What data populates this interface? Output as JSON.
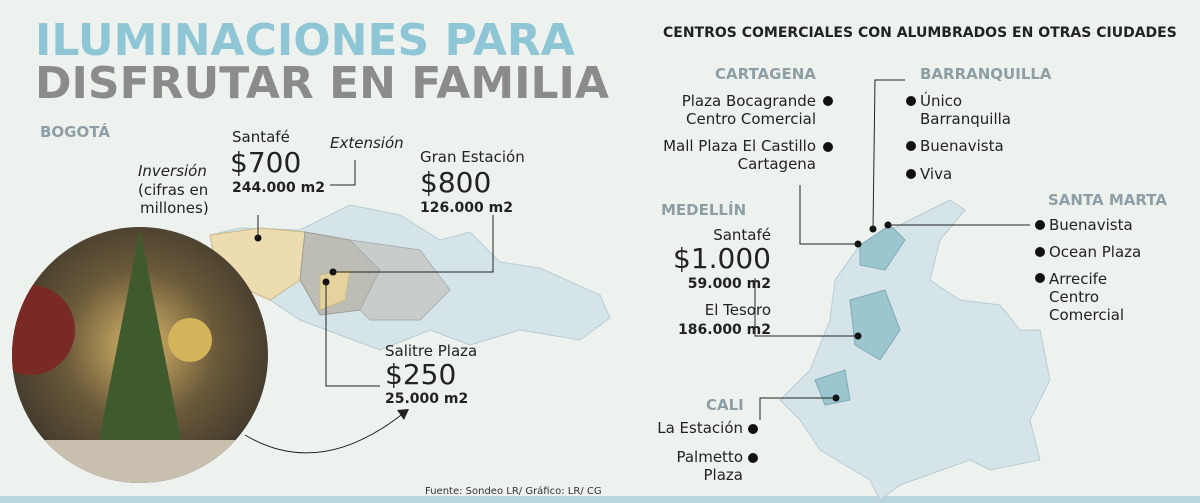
{
  "header": {
    "title_lines": [
      "ILUMINACIONES PARA",
      "DISFRUTAR EN FAMILIA"
    ]
  },
  "bogota": {
    "city": "BOGOTÁ",
    "legend": {
      "investment_lines": [
        "Inversión",
        "(cifras en",
        "millones)"
      ],
      "extension": "Extensión"
    },
    "malls": [
      {
        "name": "Santafé",
        "investment": "$700",
        "area": "244.000 m2"
      },
      {
        "name": "Gran Estación",
        "investment": "$800",
        "area": "126.000 m2"
      },
      {
        "name": "Salitre Plaza",
        "investment": "$250",
        "area": "25.000 m2"
      }
    ]
  },
  "others": {
    "title": "CENTROS COMERCIALES CON ALUMBRADOS EN OTRAS CIUDADES",
    "cartagena": {
      "city": "CARTAGENA",
      "malls": [
        [
          "Plaza Bocagrande",
          "Centro Comercial"
        ],
        [
          "Mall Plaza El Castillo",
          "Cartagena"
        ]
      ]
    },
    "barranquilla": {
      "city": "BARRANQUILLA",
      "malls": [
        [
          "Único",
          "Barranquilla"
        ],
        [
          "Buenavista"
        ],
        [
          "Viva"
        ]
      ]
    },
    "santa_marta": {
      "city": "SANTA MARTA",
      "malls": [
        [
          "Buenavista"
        ],
        [
          "Ocean Plaza"
        ],
        [
          "Arrecife",
          "Centro",
          "Comercial"
        ]
      ]
    },
    "medellin": {
      "city": "MEDELLÍN",
      "malls": [
        {
          "name": "Santafé",
          "investment": "$1.000",
          "area": "59.000 m2"
        },
        {
          "name": "El Tesoro",
          "area": "186.000 m2"
        }
      ]
    },
    "cali": {
      "city": "CALI",
      "malls": [
        [
          "La Estación"
        ],
        [
          "Palmetto",
          "Plaza"
        ]
      ]
    }
  },
  "footer": {
    "source": "Fuente: Sondeo LR/ Gráfico: LR/ CG"
  }
}
